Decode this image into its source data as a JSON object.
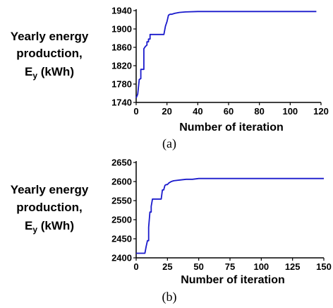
{
  "chart_data": [
    {
      "type": "line",
      "caption": "(a)",
      "ylabel_lines": [
        "Yearly energy",
        "production,"
      ],
      "ylabel_symbol": "E",
      "ylabel_subscript": "y",
      "ylabel_unit": " (kWh)",
      "xlabel": "Number of iteration",
      "xlim": [
        0,
        120
      ],
      "ylim": [
        1740,
        1940
      ],
      "xticks": [
        0,
        20,
        40,
        60,
        80,
        100,
        120
      ],
      "yticks": [
        1740,
        1780,
        1820,
        1860,
        1900,
        1940
      ],
      "color": "#1a1acc",
      "series": [
        {
          "x": [
            0,
            1,
            2,
            3,
            3,
            4,
            5,
            5,
            6,
            7,
            7,
            8,
            8,
            9,
            9,
            10,
            12,
            14,
            16,
            18,
            19,
            20,
            21,
            22,
            23,
            25,
            28,
            32,
            40,
            50,
            60,
            80,
            100,
            117
          ],
          "y": [
            1750,
            1758,
            1790,
            1792,
            1812,
            1812,
            1812,
            1857,
            1862,
            1865,
            1872,
            1872,
            1878,
            1878,
            1888,
            1888,
            1888,
            1888,
            1888,
            1888,
            1906,
            1916,
            1930,
            1932,
            1932,
            1934,
            1936,
            1937,
            1938,
            1938,
            1938,
            1938,
            1938,
            1938
          ]
        }
      ]
    },
    {
      "type": "line",
      "caption": "(b)",
      "ylabel_lines": [
        "Yearly energy",
        "production,"
      ],
      "ylabel_symbol": "E",
      "ylabel_subscript": "y",
      "ylabel_unit": " (kWh)",
      "xlabel": "Number of iteration",
      "xlim": [
        0,
        150
      ],
      "ylim": [
        2400,
        2650
      ],
      "xticks": [
        0,
        25,
        50,
        75,
        100,
        125,
        150
      ],
      "yticks": [
        2400,
        2450,
        2500,
        2550,
        2600,
        2650
      ],
      "color": "#1a1acc",
      "series": [
        {
          "x": [
            0,
            1,
            2,
            4,
            5,
            7,
            8,
            9,
            10,
            10,
            11,
            12,
            12,
            13,
            14,
            15,
            15,
            20,
            21,
            22,
            23,
            24,
            25,
            26,
            28,
            30,
            35,
            40,
            45,
            50,
            60,
            80,
            100,
            125,
            150
          ],
          "y": [
            2412,
            2412,
            2412,
            2412,
            2412,
            2412,
            2430,
            2445,
            2445,
            2480,
            2520,
            2520,
            2535,
            2554,
            2554,
            2554,
            2554,
            2554,
            2578,
            2578,
            2590,
            2592,
            2592,
            2596,
            2600,
            2602,
            2604,
            2606,
            2606,
            2608,
            2608,
            2608,
            2608,
            2608,
            2608
          ]
        }
      ]
    }
  ]
}
